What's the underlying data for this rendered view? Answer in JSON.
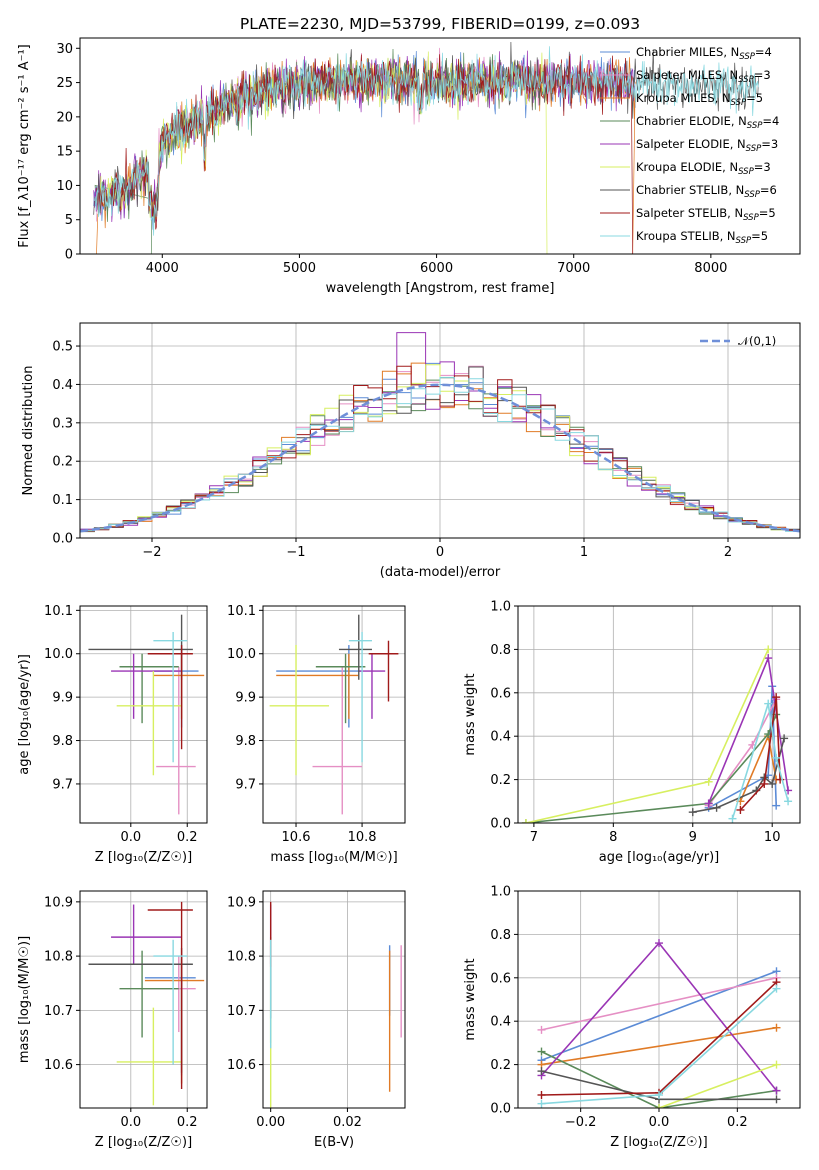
{
  "title": "PLATE=2230, MJD=53799, FIBERID=0199, z=0.093",
  "colors": {
    "chabrier_miles": "#5b8bd6",
    "salpeter_miles": "#e58fc4",
    "kroupa_miles": "#e07b26",
    "chabrier_elodie": "#5a8a5a",
    "salpeter_elodie": "#9a35b5",
    "kroupa_elodie": "#d7ef60",
    "chabrier_stelib": "#555555",
    "salpeter_stelib": "#a01a1a",
    "kroupa_stelib": "#88d8e0"
  },
  "chart_data": [
    {
      "id": "spectrum",
      "type": "line",
      "xlabel": "wavelength [Angstrom, rest frame]",
      "ylabel": "Flux [f_λ10⁻¹⁷ erg cm⁻² s⁻¹ A⁻¹]",
      "xlim": [
        3400,
        8650
      ],
      "ylim": [
        0,
        31.5
      ],
      "xticks": [
        4000,
        5000,
        6000,
        7000,
        8000
      ],
      "yticks": [
        0,
        5,
        10,
        15,
        20,
        25,
        30
      ],
      "grid": false,
      "legend_position": "upper-right",
      "legend": [
        {
          "label": "Chabrier MILES, N",
          "sub": "SSP",
          "tail": "=4",
          "color": "#5b8bd6"
        },
        {
          "label": "Salpeter MILES, N",
          "sub": "SSP",
          "tail": "=3",
          "color": "#e58fc4"
        },
        {
          "label": "Kroupa MILES, N",
          "sub": "SSP",
          "tail": "=5",
          "color": "#e07b26"
        },
        {
          "label": "Chabrier ELODIE, N",
          "sub": "SSP",
          "tail": "=4",
          "color": "#5a8a5a"
        },
        {
          "label": "Salpeter ELODIE, N",
          "sub": "SSP",
          "tail": "=3",
          "color": "#9a35b5"
        },
        {
          "label": "Kroupa ELODIE, N",
          "sub": "SSP",
          "tail": "=3",
          "color": "#d7ef60"
        },
        {
          "label": "Chabrier STELIB, N",
          "sub": "SSP",
          "tail": "=6",
          "color": "#555555"
        },
        {
          "label": "Salpeter STELIB, N",
          "sub": "SSP",
          "tail": "=5",
          "color": "#a01a1a"
        },
        {
          "label": "Kroupa STELIB, N",
          "sub": "SSP",
          "tail": "=5",
          "color": "#88d8e0"
        }
      ],
      "envelope": [
        [
          3500,
          7.5
        ],
        [
          3600,
          8.5
        ],
        [
          3700,
          9
        ],
        [
          3800,
          11
        ],
        [
          3900,
          12
        ],
        [
          3950,
          10
        ],
        [
          4000,
          16
        ],
        [
          4100,
          18
        ],
        [
          4200,
          19
        ],
        [
          4300,
          20
        ],
        [
          4400,
          21
        ],
        [
          4500,
          22
        ],
        [
          4600,
          23
        ],
        [
          4700,
          23.5
        ],
        [
          4800,
          24
        ],
        [
          4900,
          24.5
        ],
        [
          5000,
          24.5
        ],
        [
          5100,
          25
        ],
        [
          5200,
          25
        ],
        [
          5300,
          25.5
        ],
        [
          5400,
          25.5
        ],
        [
          5500,
          25.5
        ],
        [
          5600,
          25.5
        ],
        [
          5700,
          25.5
        ],
        [
          5800,
          25.5
        ],
        [
          5900,
          25
        ],
        [
          6000,
          25
        ],
        [
          6100,
          25
        ],
        [
          6200,
          25
        ],
        [
          6300,
          25
        ],
        [
          6400,
          25
        ],
        [
          6500,
          25
        ],
        [
          6600,
          25.5
        ],
        [
          6700,
          25
        ],
        [
          6800,
          25
        ],
        [
          6900,
          25
        ],
        [
          7000,
          25
        ],
        [
          7100,
          25
        ],
        [
          7200,
          25
        ],
        [
          7300,
          25
        ],
        [
          7400,
          24.5
        ]
      ]
    },
    {
      "id": "residuals",
      "type": "histogram",
      "xlabel": "(data-model)/error",
      "ylabel": "Normed distribution",
      "xlim": [
        -2.5,
        2.5
      ],
      "ylim": [
        0,
        0.56
      ],
      "xticks": [
        -2,
        -1,
        0,
        1,
        2
      ],
      "yticks": [
        0.0,
        0.1,
        0.2,
        0.3,
        0.4,
        0.5
      ],
      "grid": true,
      "legend_position": "upper-right",
      "legend_label": "𝒩(0,1)",
      "bin_width": 0.1
    },
    {
      "id": "age_vs_Z",
      "type": "errorbar",
      "xlabel": "Z [log₁₀(Z/Z☉)]",
      "ylabel": "age  [log₁₀(age/yr)]",
      "xlim": [
        -0.18,
        0.27
      ],
      "ylim": [
        9.61,
        10.11
      ],
      "xticks": [
        0.0,
        0.2
      ],
      "yticks": [
        9.7,
        9.8,
        9.9,
        10.0,
        10.1
      ],
      "grid": true,
      "points": [
        {
          "color": "#5b8bd6",
          "x": 0.18,
          "xerr": [
            0.1,
            0.06
          ],
          "y": 9.96,
          "yerr": [
            0.13,
            0.06
          ]
        },
        {
          "color": "#e58fc4",
          "x": 0.17,
          "xerr": [
            0.08,
            0.06
          ],
          "y": 9.74,
          "yerr": [
            0.11,
            0.23
          ]
        },
        {
          "color": "#e07b26",
          "x": 0.18,
          "xerr": [
            0.1,
            0.08
          ],
          "y": 9.95,
          "yerr": [
            0.1,
            0.05
          ]
        },
        {
          "color": "#5a8a5a",
          "x": 0.04,
          "xerr": [
            0.08,
            0.13
          ],
          "y": 9.97,
          "yerr": [
            0.13,
            0.03
          ]
        },
        {
          "color": "#9a35b5",
          "x": 0.01,
          "xerr": [
            0.08,
            0.17
          ],
          "y": 9.96,
          "yerr": [
            0.11,
            0.04
          ]
        },
        {
          "color": "#d7ef60",
          "x": 0.08,
          "xerr": [
            0.13,
            0.1
          ],
          "y": 9.88,
          "yerr": [
            0.16,
            0.08
          ]
        },
        {
          "color": "#555555",
          "x": 0.18,
          "xerr": [
            0.33,
            0.04
          ],
          "y": 10.01,
          "yerr": [
            0.07,
            0.08
          ]
        },
        {
          "color": "#a01a1a",
          "x": 0.18,
          "xerr": [
            0.12,
            0.04
          ],
          "y": 10.0,
          "yerr": [
            0.22,
            0.02
          ]
        },
        {
          "color": "#88d8e0",
          "x": 0.15,
          "xerr": [
            0.07,
            0.05
          ],
          "y": 10.03,
          "yerr": [
            0.28,
            0.02
          ]
        }
      ]
    },
    {
      "id": "age_vs_mass",
      "type": "errorbar",
      "xlabel": "mass [log₁₀(M/M☉)]",
      "ylabel": "",
      "xlim": [
        10.5,
        10.93
      ],
      "ylim": [
        9.61,
        10.11
      ],
      "xticks": [
        10.6,
        10.8
      ],
      "yticks": [
        9.7,
        9.8,
        9.9,
        10.0,
        10.1
      ],
      "grid": true,
      "points": [
        {
          "color": "#5b8bd6",
          "x": 10.76,
          "xerr": [
            0.22,
            0.04
          ],
          "y": 9.96,
          "yerr": [
            0.13,
            0.06
          ]
        },
        {
          "color": "#e58fc4",
          "x": 10.74,
          "xerr": [
            0.09,
            0.06
          ],
          "y": 9.74,
          "yerr": [
            0.11,
            0.23
          ]
        },
        {
          "color": "#e07b26",
          "x": 10.76,
          "xerr": [
            0.22,
            0.03
          ],
          "y": 9.95,
          "yerr": [
            0.1,
            0.05
          ]
        },
        {
          "color": "#5a8a5a",
          "x": 10.75,
          "xerr": [
            0.09,
            0.06
          ],
          "y": 9.97,
          "yerr": [
            0.13,
            0.03
          ]
        },
        {
          "color": "#9a35b5",
          "x": 10.83,
          "xerr": [
            0.04,
            0.04
          ],
          "y": 9.96,
          "yerr": [
            0.11,
            0.04
          ]
        },
        {
          "color": "#d7ef60",
          "x": 10.6,
          "xerr": [
            0.08,
            0.1
          ],
          "y": 9.88,
          "yerr": [
            0.16,
            0.14
          ]
        },
        {
          "color": "#555555",
          "x": 10.79,
          "xerr": [
            0.06,
            0.04
          ],
          "y": 10.01,
          "yerr": [
            0.07,
            0.08
          ]
        },
        {
          "color": "#a01a1a",
          "x": 10.88,
          "xerr": [
            0.06,
            0.03
          ],
          "y": 10.0,
          "yerr": [
            0.11,
            0.03
          ]
        },
        {
          "color": "#88d8e0",
          "x": 10.8,
          "xerr": [
            0.04,
            0.03
          ],
          "y": 10.03,
          "yerr": [
            0.28,
            0.02
          ]
        }
      ]
    },
    {
      "id": "weight_vs_age",
      "type": "line",
      "xlabel": "age  [log₁₀(age/yr)]",
      "ylabel": "mass weight",
      "xlim": [
        6.8,
        10.35
      ],
      "ylim": [
        0,
        1.0
      ],
      "xticks": [
        7,
        8,
        9,
        10
      ],
      "yticks": [
        0.0,
        0.2,
        0.4,
        0.6,
        0.8,
        1.0
      ],
      "grid": true,
      "series": [
        {
          "color": "#5b8bd6",
          "x": [
            9.2,
            9.95,
            10.0,
            10.05
          ],
          "y": [
            0.07,
            0.22,
            0.63,
            0.08
          ]
        },
        {
          "color": "#e58fc4",
          "x": [
            9.2,
            9.75,
            10.05
          ],
          "y": [
            0.08,
            0.36,
            0.57
          ]
        },
        {
          "color": "#e07b26",
          "x": [
            9.6,
            9.95,
            10.05
          ],
          "y": [
            0.1,
            0.4,
            0.2
          ]
        },
        {
          "color": "#5a8a5a",
          "x": [
            6.9,
            9.2,
            9.95,
            10.05
          ],
          "y": [
            0.0,
            0.09,
            0.41,
            0.5
          ]
        },
        {
          "color": "#9a35b5",
          "x": [
            9.2,
            9.95,
            10.2
          ],
          "y": [
            0.09,
            0.76,
            0.15
          ]
        },
        {
          "color": "#d7ef60",
          "x": [
            6.9,
            9.2,
            9.95
          ],
          "y": [
            0.0,
            0.19,
            0.8
          ]
        },
        {
          "color": "#555555",
          "x": [
            9.0,
            9.3,
            9.8,
            9.9,
            10.0,
            10.15
          ],
          "y": [
            0.05,
            0.07,
            0.15,
            0.21,
            0.18,
            0.39
          ]
        },
        {
          "color": "#a01a1a",
          "x": [
            9.6,
            9.9,
            10.05,
            10.1
          ],
          "y": [
            0.06,
            0.18,
            0.58,
            0.2
          ]
        },
        {
          "color": "#88d8e0",
          "x": [
            9.5,
            9.95,
            10.05,
            10.2
          ],
          "y": [
            0.02,
            0.55,
            0.3,
            0.1
          ]
        }
      ]
    },
    {
      "id": "mass_vs_Z",
      "type": "errorbar",
      "xlabel": "Z [log₁₀(Z/Z☉)]",
      "ylabel": "mass [log₁₀(M/M☉)]",
      "xlim": [
        -0.18,
        0.27
      ],
      "ylim": [
        10.52,
        10.92
      ],
      "xticks": [
        0.0,
        0.2
      ],
      "yticks": [
        10.6,
        10.7,
        10.8,
        10.9
      ],
      "grid": true,
      "points": [
        {
          "color": "#5b8bd6",
          "x": 0.18,
          "xerr": [
            0.13,
            0.05
          ],
          "y": 10.76,
          "yerr": [
            0.18,
            0.04
          ]
        },
        {
          "color": "#e58fc4",
          "x": 0.17,
          "xerr": [
            0.13,
            0.06
          ],
          "y": 10.74,
          "yerr": [
            0.08,
            0.06
          ]
        },
        {
          "color": "#e07b26",
          "x": 0.18,
          "xerr": [
            0.13,
            0.08
          ],
          "y": 10.755,
          "yerr": [
            0.19,
            0.04
          ]
        },
        {
          "color": "#5a8a5a",
          "x": 0.04,
          "xerr": [
            0.08,
            0.13
          ],
          "y": 10.74,
          "yerr": [
            0.09,
            0.07
          ]
        },
        {
          "color": "#9a35b5",
          "x": 0.01,
          "xerr": [
            0.08,
            0.17
          ],
          "y": 10.835,
          "yerr": [
            0.05,
            0.06
          ]
        },
        {
          "color": "#d7ef60",
          "x": 0.08,
          "xerr": [
            0.13,
            0.1
          ],
          "y": 10.605,
          "yerr": [
            0.08,
            0.1
          ]
        },
        {
          "color": "#555555",
          "x": 0.18,
          "xerr": [
            0.33,
            0.04
          ],
          "y": 10.785,
          "yerr": [
            0.2,
            0.03
          ]
        },
        {
          "color": "#a01a1a",
          "x": 0.18,
          "xerr": [
            0.12,
            0.04
          ],
          "y": 10.885,
          "yerr": [
            0.33,
            0.015
          ]
        },
        {
          "color": "#88d8e0",
          "x": 0.15,
          "xerr": [
            0.07,
            0.05
          ],
          "y": 10.8,
          "yerr": [
            0.2,
            0.03
          ]
        }
      ]
    },
    {
      "id": "mass_vs_ebv",
      "type": "errorbar",
      "xlabel": "E(B-V)",
      "ylabel": "",
      "xlim": [
        -0.002,
        0.035
      ],
      "ylim": [
        10.52,
        10.92
      ],
      "xticks": [
        0.0,
        0.02
      ],
      "yticks": [
        10.6,
        10.7,
        10.8,
        10.9
      ],
      "grid": true,
      "points": [
        {
          "color": "#5b8bd6",
          "x": 0.031,
          "xerr": [
            0,
            0
          ],
          "y": 10.76,
          "yerr": [
            0.07,
            0.06
          ]
        },
        {
          "color": "#e58fc4",
          "x": 0.034,
          "xerr": [
            0,
            0
          ],
          "y": 10.74,
          "yerr": [
            0.09,
            0.08
          ]
        },
        {
          "color": "#e07b26",
          "x": 0.031,
          "xerr": [
            0,
            0
          ],
          "y": 10.7,
          "yerr": [
            0.15,
            0.11
          ]
        },
        {
          "color": "#5a8a5a",
          "x": 0.0,
          "xerr": [
            0,
            0
          ],
          "y": 10.74,
          "yerr": [
            0.1,
            0.08
          ]
        },
        {
          "color": "#9a35b5",
          "x": 0.0,
          "xerr": [
            0,
            0
          ],
          "y": 10.835,
          "yerr": [
            0.05,
            0.06
          ]
        },
        {
          "color": "#d7ef60",
          "x": 0.0,
          "xerr": [
            0,
            0
          ],
          "y": 10.62,
          "yerr": [
            0.1,
            0.1
          ]
        },
        {
          "color": "#555555",
          "x": 0.0,
          "xerr": [
            0,
            0
          ],
          "y": 10.785,
          "yerr": [
            0.1,
            0.05
          ]
        },
        {
          "color": "#a01a1a",
          "x": 0.0,
          "xerr": [
            0,
            0
          ],
          "y": 10.86,
          "yerr": [
            0.08,
            0.04
          ]
        },
        {
          "color": "#88d8e0",
          "x": 0.0,
          "xerr": [
            0,
            0
          ],
          "y": 10.75,
          "yerr": [
            0.12,
            0.08
          ]
        }
      ]
    },
    {
      "id": "weight_vs_Z",
      "type": "line",
      "xlabel": "Z [log₁₀(Z/Z☉)]",
      "ylabel": "mass weight",
      "xlim": [
        -0.36,
        0.36
      ],
      "ylim": [
        0,
        1.0
      ],
      "xticks": [
        -0.2,
        0.0,
        0.2
      ],
      "yticks": [
        0.0,
        0.2,
        0.4,
        0.6,
        0.8,
        1.0
      ],
      "grid": true,
      "series": [
        {
          "color": "#5b8bd6",
          "x": [
            -0.3,
            0.3
          ],
          "y": [
            0.22,
            0.63
          ]
        },
        {
          "color": "#e58fc4",
          "x": [
            -0.3,
            0.3
          ],
          "y": [
            0.36,
            0.6
          ]
        },
        {
          "color": "#e07b26",
          "x": [
            -0.3,
            0.3
          ],
          "y": [
            0.2,
            0.37
          ]
        },
        {
          "color": "#5a8a5a",
          "x": [
            -0.3,
            0.0,
            0.3
          ],
          "y": [
            0.26,
            0.0,
            0.08
          ]
        },
        {
          "color": "#9a35b5",
          "x": [
            -0.3,
            0.0,
            0.3
          ],
          "y": [
            0.15,
            0.76,
            0.08
          ]
        },
        {
          "color": "#d7ef60",
          "x": [
            0.0,
            0.3
          ],
          "y": [
            0.0,
            0.2
          ]
        },
        {
          "color": "#555555",
          "x": [
            -0.3,
            0.0,
            0.3
          ],
          "y": [
            0.17,
            0.04,
            0.04
          ]
        },
        {
          "color": "#a01a1a",
          "x": [
            -0.3,
            0.0,
            0.3
          ],
          "y": [
            0.06,
            0.07,
            0.58
          ]
        },
        {
          "color": "#88d8e0",
          "x": [
            -0.3,
            0.0,
            0.3
          ],
          "y": [
            0.02,
            0.06,
            0.55
          ]
        }
      ]
    }
  ]
}
